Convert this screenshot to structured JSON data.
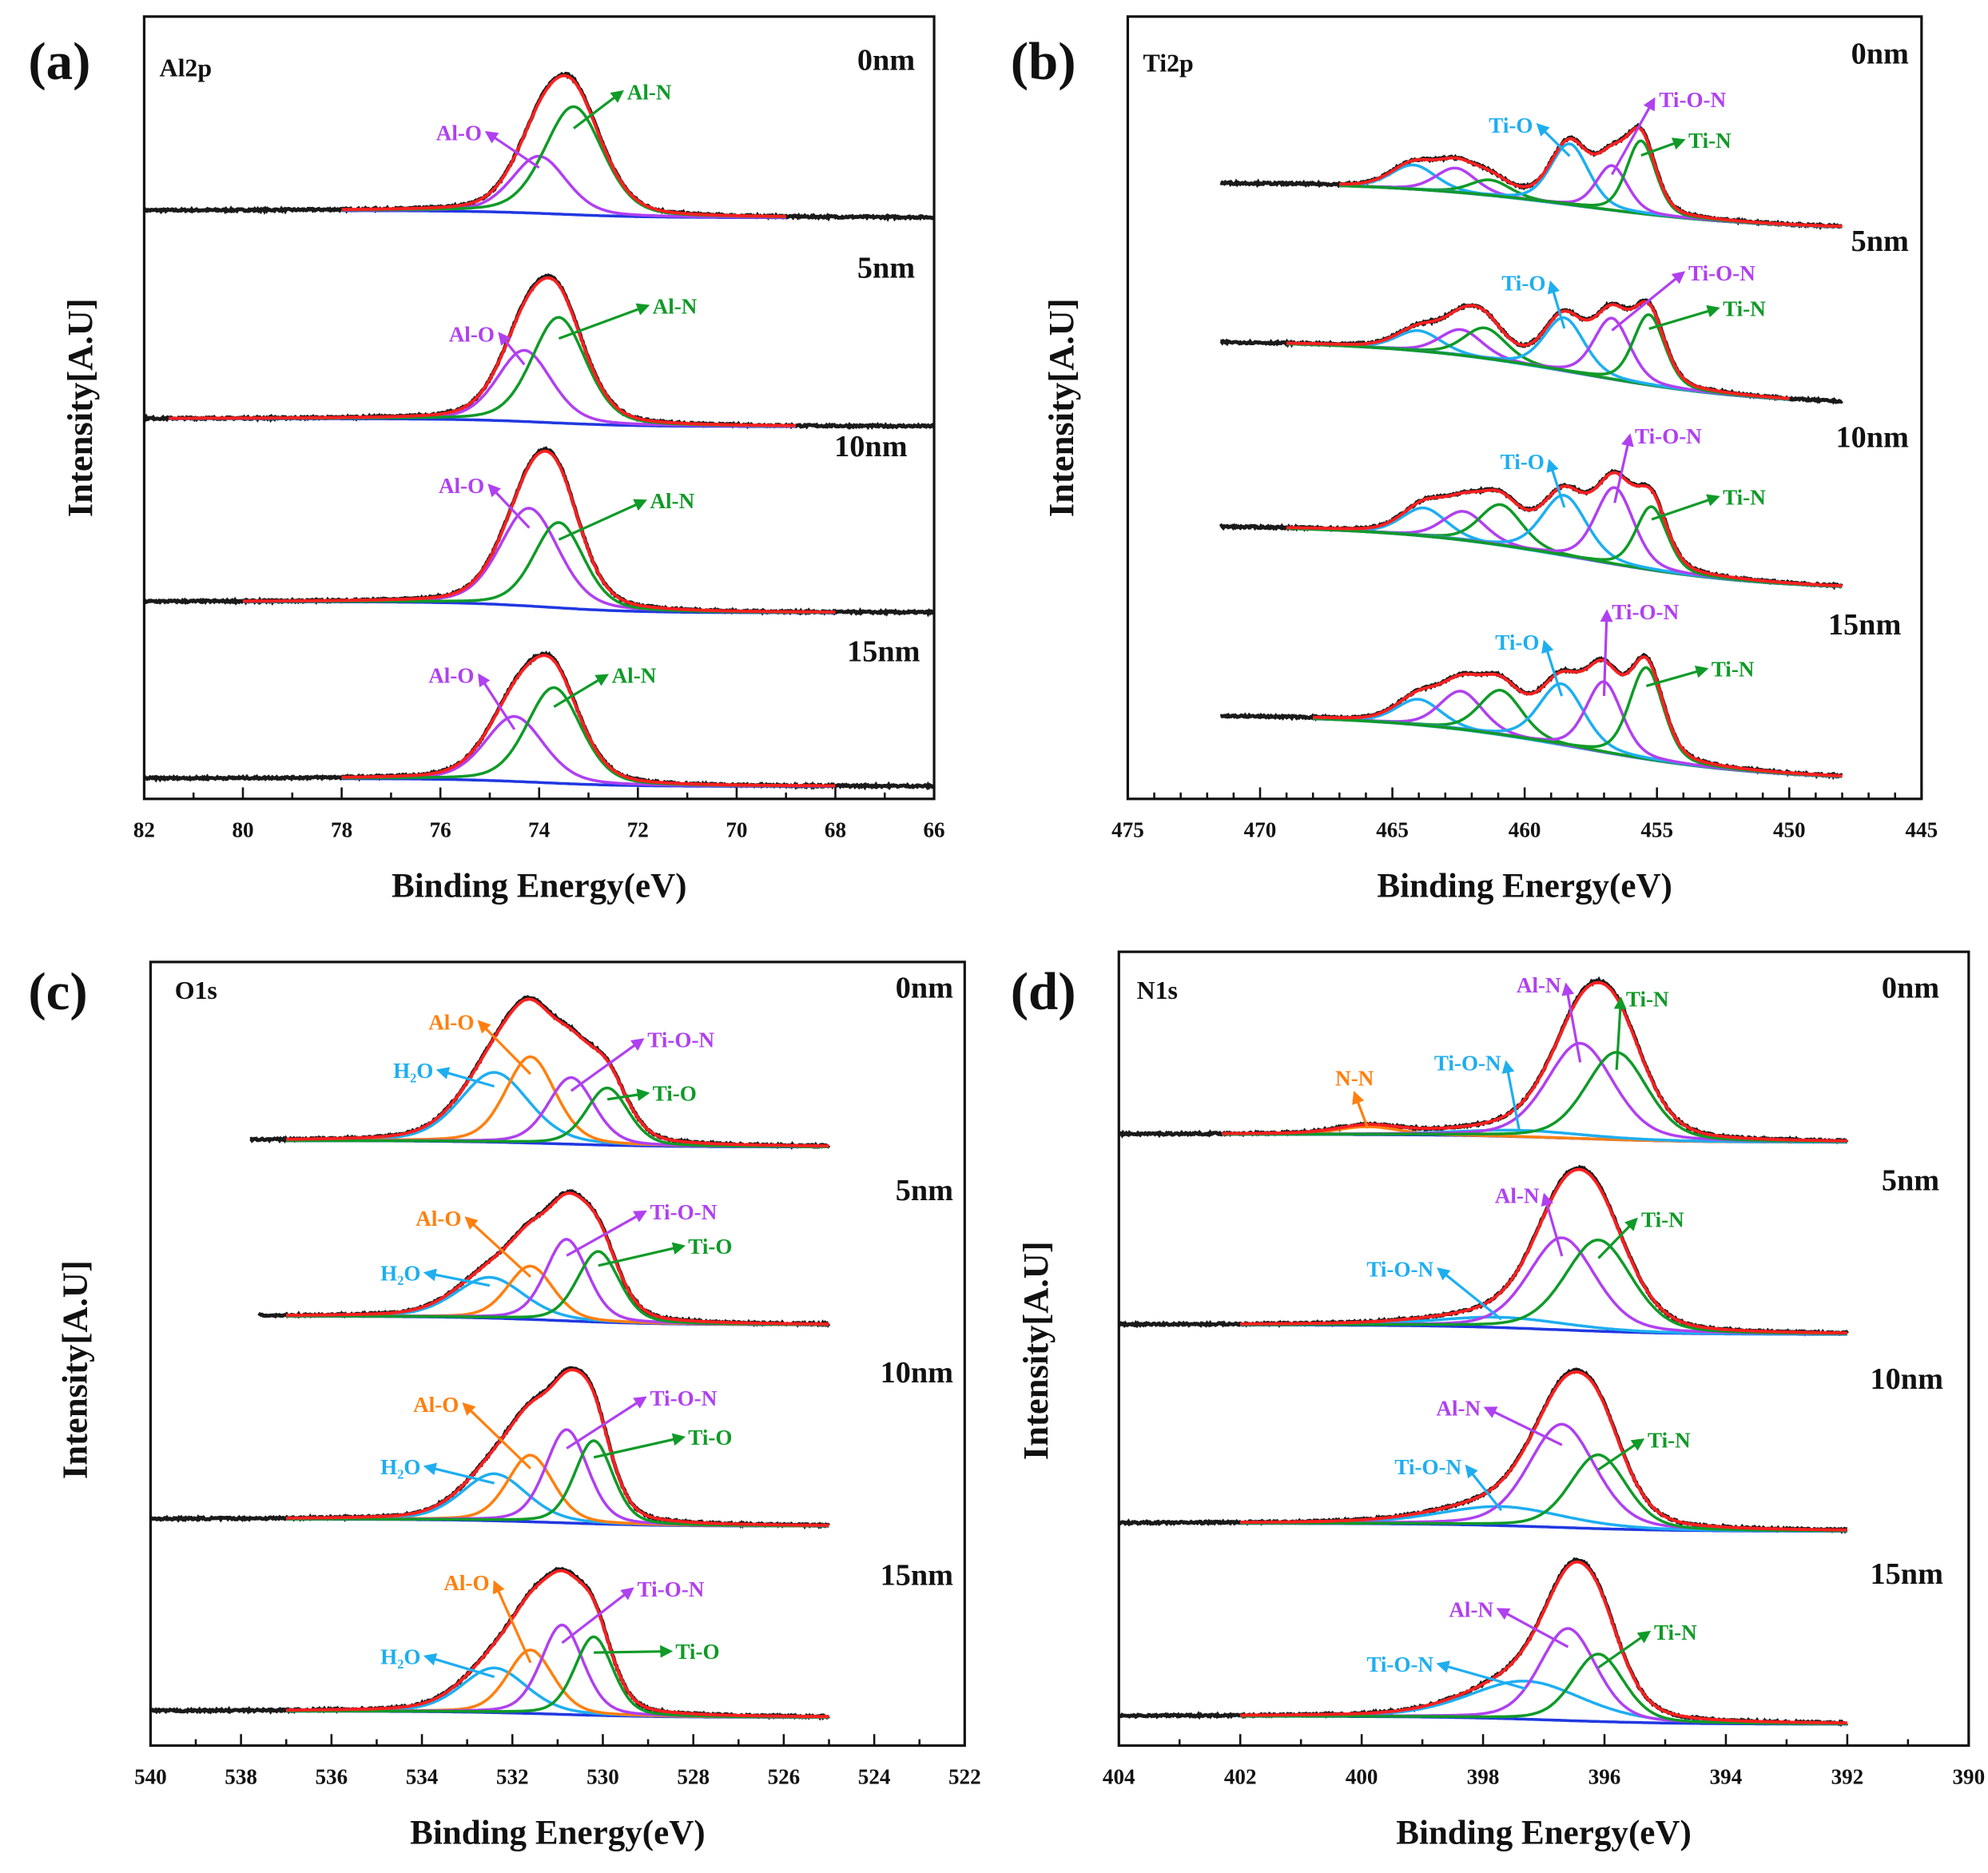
{
  "figure": "XPS spectra vs. depth",
  "colors": {
    "raw": "#1a1a1a",
    "fit": "#ff2020",
    "violet": "#b040f0",
    "green": "#109a28",
    "cyan": "#1eaef0",
    "orange": "#ff7f0e",
    "blue": "#2038e0"
  },
  "chart_data": [
    {
      "type": "line",
      "panel_label": "(a)",
      "title": "Al2p",
      "xlabel": "Binding Energy(eV)",
      "ylabel": "Intensity[A.U]",
      "xlim": [
        82,
        66
      ],
      "ylim": [
        0,
        100
      ],
      "xticks": [
        82,
        80,
        78,
        76,
        74,
        72,
        70,
        68,
        66
      ],
      "minor_step": 1,
      "background_color": "#2038e0",
      "spectra": [
        {
          "label": "0nm",
          "raw_range": [
            82,
            66
          ],
          "fit_range": [
            78,
            69
          ],
          "bg_high": 75.2,
          "bg_low": 74.3,
          "bg_center": 73.6,
          "bg_width": 0.9,
          "components": [
            {
              "name": "Al-O",
              "center": 74.0,
              "height": 7.3,
              "fwhm": 1.3,
              "color": "#b040f0"
            },
            {
              "name": "Al-N",
              "center": 73.3,
              "height": 13.8,
              "fwhm": 1.4,
              "color": "#109a28"
            }
          ]
        },
        {
          "label": "5nm",
          "raw_range": [
            82,
            66
          ],
          "fit_range": [
            81.5,
            68.8
          ],
          "bg_high": 48.6,
          "bg_low": 47.6,
          "bg_center": 73.8,
          "bg_width": 0.9,
          "components": [
            {
              "name": "Al-O",
              "center": 74.3,
              "height": 9.1,
              "fwhm": 1.3,
              "color": "#b040f0"
            },
            {
              "name": "Al-N",
              "center": 73.6,
              "height": 13.5,
              "fwhm": 1.3,
              "color": "#109a28"
            }
          ]
        },
        {
          "label": "10nm",
          "raw_range": [
            82,
            66
          ],
          "fit_range": [
            80,
            68
          ],
          "bg_high": 25.2,
          "bg_low": 23.8,
          "bg_center": 73.8,
          "bg_width": 0.9,
          "components": [
            {
              "name": "Al-O",
              "center": 74.2,
              "height": 12.5,
              "fwhm": 1.4,
              "color": "#b040f0"
            },
            {
              "name": "Al-N",
              "center": 73.6,
              "height": 10.9,
              "fwhm": 1.2,
              "color": "#109a28"
            }
          ]
        },
        {
          "label": "15nm",
          "raw_range": [
            82,
            66
          ],
          "fit_range": [
            78,
            68
          ],
          "bg_high": 2.6,
          "bg_low": 1.6,
          "bg_center": 74.0,
          "bg_width": 0.9,
          "components": [
            {
              "name": "Al-O",
              "center": 74.5,
              "height": 8.3,
              "fwhm": 1.4,
              "color": "#b040f0"
            },
            {
              "name": "Al-N",
              "center": 73.7,
              "height": 12.2,
              "fwhm": 1.3,
              "color": "#109a28"
            }
          ]
        }
      ]
    },
    {
      "type": "line",
      "panel_label": "(b)",
      "title": "Ti2p",
      "xlabel": "Binding Energy(eV)",
      "ylabel": "Intensity[A.U]",
      "xlim": [
        475,
        445
      ],
      "ylim": [
        0,
        100
      ],
      "xticks": [
        475,
        470,
        465,
        460,
        455,
        450,
        445
      ],
      "minor_step": 1,
      "background_color": "#1eaef0",
      "spectra": [
        {
          "label": "0nm",
          "raw_range": [
            471.5,
            448
          ],
          "fit_range": [
            467,
            448
          ],
          "bg_high": 78.8,
          "bg_low": 72.8,
          "bg_center": 458,
          "bg_width": 3.5,
          "components": [
            {
              "name": "Ti-O 2p1/2",
              "center": 464.2,
              "height": 3.1,
              "fwhm": 2.0,
              "color": "#1eaef0",
              "hidden_label": true
            },
            {
              "name": "Ti-O-N 2p1/2",
              "center": 462.6,
              "height": 3.1,
              "fwhm": 1.8,
              "color": "#b040f0",
              "hidden_label": true
            },
            {
              "name": "Ti-N 2p1/2",
              "center": 461.3,
              "height": 2.0,
              "fwhm": 1.8,
              "color": "#109a28",
              "hidden_label": true
            },
            {
              "name": "Ti-O",
              "center": 458.3,
              "height": 7.8,
              "fwhm": 1.7,
              "color": "#1eaef0"
            },
            {
              "name": "Ti-O-N",
              "center": 456.7,
              "height": 5.7,
              "fwhm": 1.4,
              "color": "#b040f0"
            },
            {
              "name": "Ti-N",
              "center": 455.6,
              "height": 9.3,
              "fwhm": 1.3,
              "color": "#109a28"
            }
          ]
        },
        {
          "label": "5nm",
          "raw_range": [
            471.5,
            448
          ],
          "fit_range": [
            469,
            450
          ],
          "bg_high": 58.5,
          "bg_low": 50.3,
          "bg_center": 458,
          "bg_width": 3.5,
          "components": [
            {
              "name": "Ti-O 2p1/2",
              "center": 464.0,
              "height": 2.6,
              "fwhm": 2.0,
              "color": "#1eaef0",
              "hidden_label": true
            },
            {
              "name": "Ti-O-N 2p1/2",
              "center": 462.4,
              "height": 3.3,
              "fwhm": 1.9,
              "color": "#b040f0",
              "hidden_label": true
            },
            {
              "name": "Ti-N 2p1/2",
              "center": 461.5,
              "height": 3.9,
              "fwhm": 1.9,
              "color": "#109a28",
              "hidden_label": true
            },
            {
              "name": "Ti-O",
              "center": 458.5,
              "height": 6.8,
              "fwhm": 1.8,
              "color": "#1eaef0"
            },
            {
              "name": "Ti-O-N",
              "center": 456.7,
              "height": 7.8,
              "fwhm": 1.6,
              "color": "#b040f0"
            },
            {
              "name": "Ti-N",
              "center": 455.3,
              "height": 9.0,
              "fwhm": 1.4,
              "color": "#109a28"
            }
          ]
        },
        {
          "label": "10nm",
          "raw_range": [
            471.5,
            448
          ],
          "fit_range": [
            469,
            448
          ],
          "bg_high": 34.9,
          "bg_low": 26.7,
          "bg_center": 458,
          "bg_width": 3.5,
          "components": [
            {
              "name": "Ti-O 2p1/2",
              "center": 463.8,
              "height": 3.6,
              "fwhm": 2.0,
              "color": "#1eaef0",
              "hidden_label": true
            },
            {
              "name": "Ti-O-N 2p1/2",
              "center": 462.3,
              "height": 3.7,
              "fwhm": 1.9,
              "color": "#b040f0",
              "hidden_label": true
            },
            {
              "name": "Ti-N 2p1/2",
              "center": 460.9,
              "height": 5.2,
              "fwhm": 1.9,
              "color": "#109a28",
              "hidden_label": true
            },
            {
              "name": "Ti-O",
              "center": 458.5,
              "height": 7.7,
              "fwhm": 2.0,
              "color": "#1eaef0"
            },
            {
              "name": "Ti-O-N",
              "center": 456.6,
              "height": 9.8,
              "fwhm": 1.7,
              "color": "#b040f0"
            },
            {
              "name": "Ti-N",
              "center": 455.2,
              "height": 8.1,
              "fwhm": 1.4,
              "color": "#109a28"
            }
          ]
        },
        {
          "label": "15nm",
          "raw_range": [
            471.5,
            448
          ],
          "fit_range": [
            468,
            448
          ],
          "bg_high": 10.7,
          "bg_low": 2.4,
          "bg_center": 458,
          "bg_width": 3.5,
          "components": [
            {
              "name": "Ti-O 2p1/2",
              "center": 464.0,
              "height": 3.3,
              "fwhm": 2.0,
              "color": "#1eaef0",
              "hidden_label": true
            },
            {
              "name": "Ti-O-N 2p1/2",
              "center": 462.4,
              "height": 4.9,
              "fwhm": 1.9,
              "color": "#b040f0",
              "hidden_label": true
            },
            {
              "name": "Ti-N 2p1/2",
              "center": 460.9,
              "height": 5.7,
              "fwhm": 1.9,
              "color": "#109a28",
              "hidden_label": true
            },
            {
              "name": "Ti-O",
              "center": 458.6,
              "height": 7.8,
              "fwhm": 2.0,
              "color": "#1eaef0"
            },
            {
              "name": "Ti-O-N",
              "center": 457.0,
              "height": 9.0,
              "fwhm": 1.6,
              "color": "#b040f0"
            },
            {
              "name": "Ti-N",
              "center": 455.4,
              "height": 11.7,
              "fwhm": 1.5,
              "color": "#109a28"
            }
          ]
        }
      ]
    },
    {
      "type": "line",
      "panel_label": "(c)",
      "title": "O1s",
      "xlabel": "Binding Energy(eV)",
      "ylabel": "Intensity[A.U]",
      "xlim": [
        540,
        522
      ],
      "ylim": [
        0,
        100
      ],
      "xticks": [
        540,
        538,
        536,
        534,
        532,
        530,
        528,
        526,
        524,
        522
      ],
      "minor_step": 1,
      "background_color": "#2038e0",
      "spectra": [
        {
          "label": "0nm",
          "raw_range": [
            537.8,
            525
          ],
          "fit_range": [
            537,
            525
          ],
          "bg_high": 77.2,
          "bg_low": 76.4,
          "bg_center": 531,
          "bg_width": 1.2,
          "components": [
            {
              "name": "H₂O",
              "center": 532.4,
              "height": 8.9,
              "fwhm": 1.8,
              "color": "#1eaef0"
            },
            {
              "name": "Al-O",
              "center": 531.6,
              "height": 11.0,
              "fwhm": 1.3,
              "color": "#ff7f0e"
            },
            {
              "name": "Ti-O-N",
              "center": 530.7,
              "height": 8.5,
              "fwhm": 1.2,
              "color": "#b040f0"
            },
            {
              "name": "Ti-O",
              "center": 529.9,
              "height": 7.3,
              "fwhm": 1.1,
              "color": "#109a28"
            }
          ]
        },
        {
          "label": "5nm",
          "raw_range": [
            537.6,
            525
          ],
          "fit_range": [
            537,
            525
          ],
          "bg_high": 54.8,
          "bg_low": 53.7,
          "bg_center": 531,
          "bg_width": 1.2,
          "components": [
            {
              "name": "H₂O",
              "center": 532.5,
              "height": 5.2,
              "fwhm": 1.8,
              "color": "#1eaef0"
            },
            {
              "name": "Al-O",
              "center": 531.6,
              "height": 6.8,
              "fwhm": 1.2,
              "color": "#ff7f0e"
            },
            {
              "name": "Ti-O-N",
              "center": 530.8,
              "height": 10.4,
              "fwhm": 1.1,
              "color": "#b040f0"
            },
            {
              "name": "Ti-O",
              "center": 530.1,
              "height": 9.0,
              "fwhm": 1.1,
              "color": "#109a28"
            }
          ]
        },
        {
          "label": "10nm",
          "raw_range": [
            540,
            525
          ],
          "fit_range": [
            537,
            525
          ],
          "bg_high": 28.9,
          "bg_low": 28.0,
          "bg_center": 531,
          "bg_width": 1.2,
          "components": [
            {
              "name": "H₂O",
              "center": 532.4,
              "height": 6.0,
              "fwhm": 1.7,
              "color": "#1eaef0"
            },
            {
              "name": "Al-O",
              "center": 531.6,
              "height": 8.5,
              "fwhm": 1.2,
              "color": "#ff7f0e"
            },
            {
              "name": "Ti-O-N",
              "center": 530.8,
              "height": 11.9,
              "fwhm": 1.1,
              "color": "#b040f0"
            },
            {
              "name": "Ti-O",
              "center": 530.2,
              "height": 10.6,
              "fwhm": 1.0,
              "color": "#109a28"
            }
          ]
        },
        {
          "label": "15nm",
          "raw_range": [
            540,
            525
          ],
          "fit_range": [
            537,
            525
          ],
          "bg_high": 4.4,
          "bg_low": 3.6,
          "bg_center": 531,
          "bg_width": 1.2,
          "components": [
            {
              "name": "H₂O",
              "center": 532.4,
              "height": 5.7,
              "fwhm": 1.7,
              "color": "#1eaef0"
            },
            {
              "name": "Al-O",
              "center": 531.6,
              "height": 8.1,
              "fwhm": 1.2,
              "color": "#ff7f0e"
            },
            {
              "name": "Ti-O-N",
              "center": 530.9,
              "height": 11.4,
              "fwhm": 1.1,
              "color": "#b040f0"
            },
            {
              "name": "Ti-O",
              "center": 530.2,
              "height": 10.0,
              "fwhm": 1.0,
              "color": "#109a28"
            }
          ]
        }
      ]
    },
    {
      "type": "line",
      "panel_label": "(d)",
      "title": "N1s",
      "xlabel": "Binding Energy(eV)",
      "ylabel": "Intensity[A.U]",
      "xlim": [
        404,
        390
      ],
      "ylim": [
        0,
        100
      ],
      "xticks": [
        404,
        402,
        400,
        398,
        396,
        394,
        392,
        390
      ],
      "minor_step": 1,
      "background_color": "#2038e0",
      "spectra": [
        {
          "label": "0nm",
          "raw_range": [
            404,
            392
          ],
          "fit_range": [
            402.3,
            392
          ],
          "bg_high": 77.0,
          "bg_low": 76.0,
          "bg_center": 396.5,
          "bg_width": 1.0,
          "components": [
            {
              "name": "N-N",
              "center": 399.9,
              "height": 1.0,
              "fwhm": 1.2,
              "color": "#ff7f0e"
            },
            {
              "name": "Ti-O-N",
              "center": 397.4,
              "height": 0.8,
              "fwhm": 2.5,
              "color": "#1eaef0"
            },
            {
              "name": "Al-N",
              "center": 396.4,
              "height": 12.0,
              "fwhm": 1.3,
              "color": "#b040f0"
            },
            {
              "name": "Ti-N",
              "center": 395.8,
              "height": 11.0,
              "fwhm": 1.2,
              "color": "#109a28"
            }
          ]
        },
        {
          "label": "5nm",
          "raw_range": [
            404,
            392
          ],
          "fit_range": [
            402,
            392
          ],
          "bg_high": 53.0,
          "bg_low": 51.8,
          "bg_center": 396.8,
          "bg_width": 1.0,
          "components": [
            {
              "name": "Ti-O-N",
              "center": 397.7,
              "height": 1.3,
              "fwhm": 2.5,
              "color": "#1eaef0"
            },
            {
              "name": "Al-N",
              "center": 396.7,
              "height": 11.6,
              "fwhm": 1.3,
              "color": "#b040f0"
            },
            {
              "name": "Ti-N",
              "center": 396.1,
              "height": 11.5,
              "fwhm": 1.3,
              "color": "#109a28"
            }
          ]
        },
        {
          "label": "10nm",
          "raw_range": [
            404,
            392
          ],
          "fit_range": [
            402,
            392
          ],
          "bg_high": 28.0,
          "bg_low": 27.0,
          "bg_center": 396.8,
          "bg_width": 1.0,
          "components": [
            {
              "name": "Ti-O-N",
              "center": 397.7,
              "height": 2.4,
              "fwhm": 2.4,
              "color": "#1eaef0"
            },
            {
              "name": "Al-N",
              "center": 396.7,
              "height": 13.0,
              "fwhm": 1.3,
              "color": "#b040f0"
            },
            {
              "name": "Ti-N",
              "center": 396.1,
              "height": 9.3,
              "fwhm": 1.1,
              "color": "#109a28"
            }
          ]
        },
        {
          "label": "15nm",
          "raw_range": [
            404,
            392
          ],
          "fit_range": [
            402,
            392
          ],
          "bg_high": 3.7,
          "bg_low": 2.7,
          "bg_center": 396.8,
          "bg_width": 1.0,
          "components": [
            {
              "name": "Ti-O-N",
              "center": 397.3,
              "height": 4.8,
              "fwhm": 2.2,
              "color": "#1eaef0"
            },
            {
              "name": "Al-N",
              "center": 396.6,
              "height": 11.6,
              "fwhm": 1.1,
              "color": "#b040f0"
            },
            {
              "name": "Ti-N",
              "center": 396.1,
              "height": 8.5,
              "fwhm": 1.0,
              "color": "#109a28"
            }
          ]
        }
      ]
    }
  ]
}
